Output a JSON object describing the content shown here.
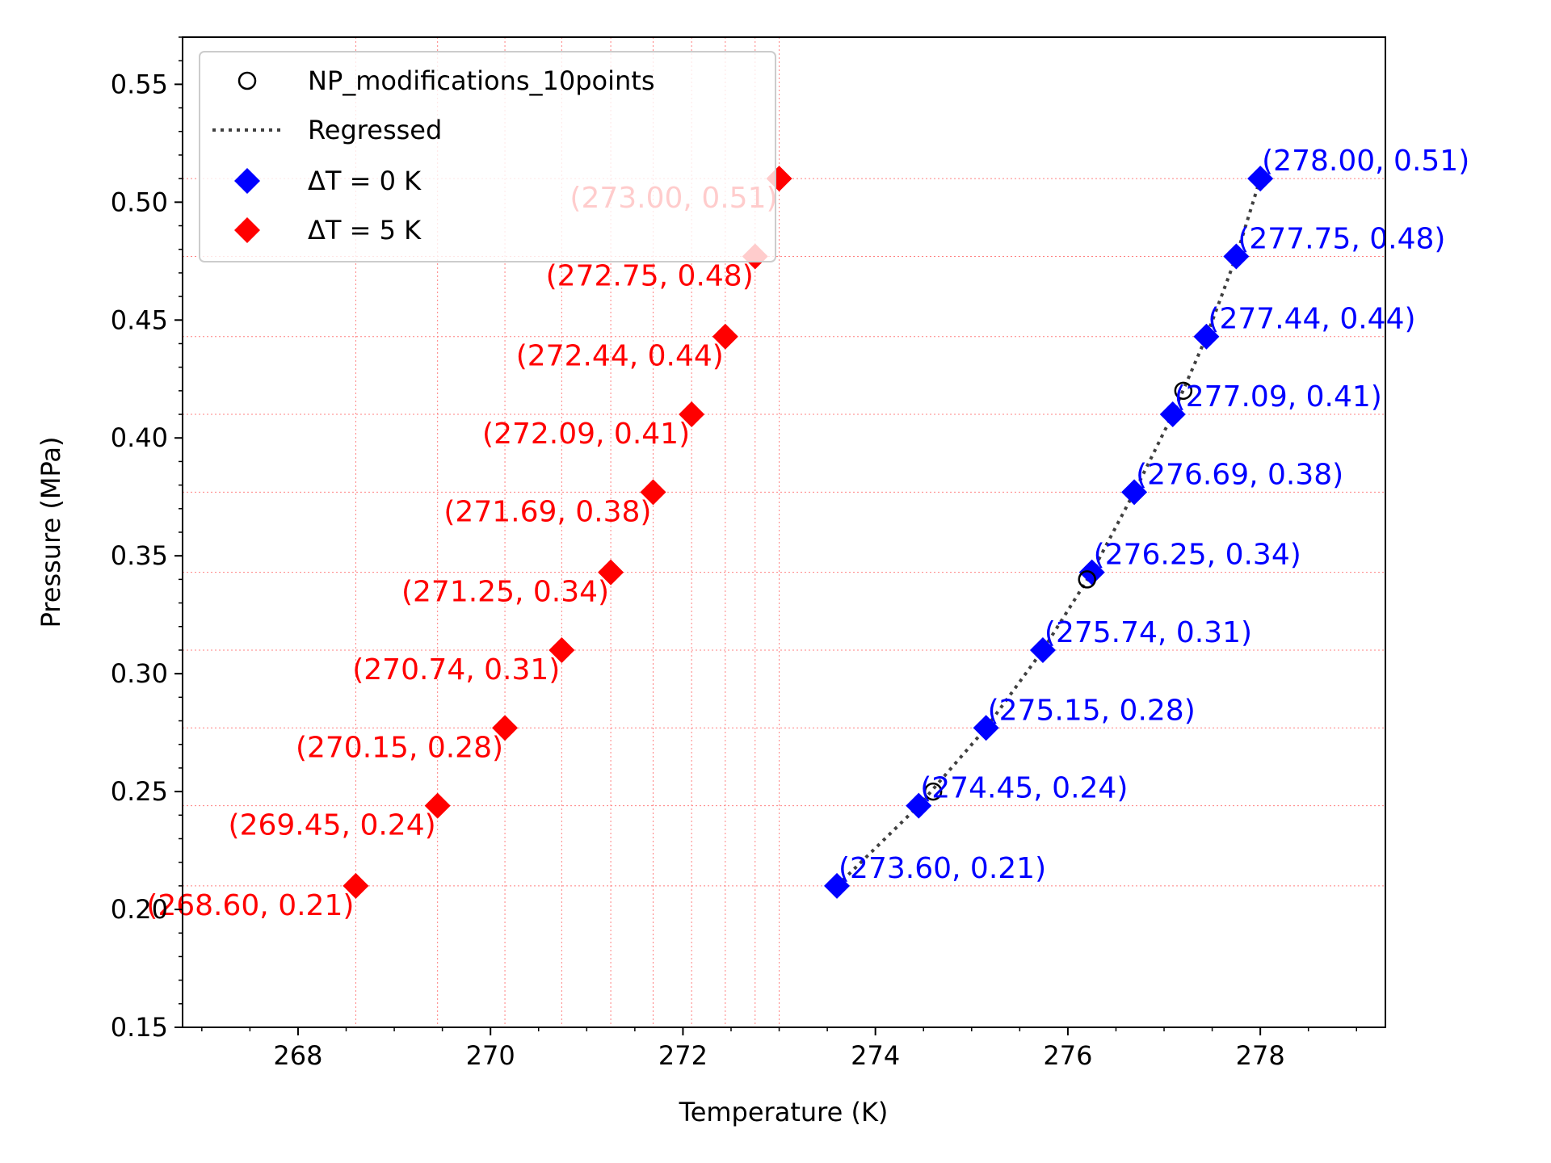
{
  "chart_data": {
    "type": "scatter",
    "title": "",
    "xlabel": "Temperature (K)",
    "ylabel": "Pressure (MPa)",
    "xlim": [
      266.8,
      279.3
    ],
    "ylim": [
      0.15,
      0.57
    ],
    "xticks": [
      268,
      270,
      272,
      274,
      276,
      278
    ],
    "xtick_labels": [
      "268",
      "270",
      "272",
      "274",
      "276",
      "278"
    ],
    "yticks": [
      0.15,
      0.2,
      0.25,
      0.3,
      0.35,
      0.4,
      0.45,
      0.5,
      0.55
    ],
    "ytick_labels": [
      "0.15",
      "0.20",
      "0.25",
      "0.30",
      "0.35",
      "0.40",
      "0.45",
      "0.50",
      "0.55"
    ],
    "grid": "dotted red reference lines at the ΔT = 5 K points",
    "legend_position": "top-left",
    "colors": {
      "dt0": "#0000ff",
      "dt5": "#ff0000",
      "exp": "#000000",
      "reg": "#404040",
      "grid": "#ff8080"
    },
    "series": [
      {
        "name": "NP_modifications_10points",
        "style": "open-circle",
        "x": [
          274.6,
          276.2,
          277.2
        ],
        "y": [
          0.25,
          0.34,
          0.42
        ]
      },
      {
        "name": "Regressed",
        "style": "dotted-line",
        "x": [
          273.6,
          274.45,
          275.15,
          275.74,
          276.25,
          276.69,
          277.09,
          277.44,
          277.75,
          278.0
        ],
        "y": [
          0.21,
          0.244,
          0.277,
          0.31,
          0.343,
          0.377,
          0.41,
          0.443,
          0.477,
          0.51
        ]
      },
      {
        "name": "ΔT = 0 K",
        "style": "diamond",
        "x": [
          273.6,
          274.45,
          275.15,
          275.74,
          276.25,
          276.69,
          277.09,
          277.44,
          277.75,
          278.0
        ],
        "y": [
          0.21,
          0.244,
          0.277,
          0.31,
          0.343,
          0.377,
          0.41,
          0.443,
          0.477,
          0.51
        ],
        "labels": [
          "(273.60, 0.21)",
          "(274.45, 0.24)",
          "(275.15, 0.28)",
          "(275.74, 0.31)",
          "(276.25, 0.34)",
          "(276.69, 0.38)",
          "(277.09, 0.41)",
          "(277.44, 0.44)",
          "(277.75, 0.48)",
          "(278.00, 0.51)"
        ]
      },
      {
        "name": "ΔT = 5 K",
        "style": "diamond",
        "x": [
          268.6,
          269.45,
          270.15,
          270.74,
          271.25,
          271.69,
          272.09,
          272.44,
          272.75,
          273.0
        ],
        "y": [
          0.21,
          0.244,
          0.277,
          0.31,
          0.343,
          0.377,
          0.41,
          0.443,
          0.477,
          0.51
        ],
        "labels": [
          "(268.60, 0.21)",
          "(269.45, 0.24)",
          "(270.15, 0.28)",
          "(270.74, 0.31)",
          "(271.25, 0.34)",
          "(271.69, 0.38)",
          "(272.09, 0.41)",
          "(272.44, 0.44)",
          "(272.75, 0.48)",
          "(273.00, 0.51)"
        ]
      }
    ]
  }
}
